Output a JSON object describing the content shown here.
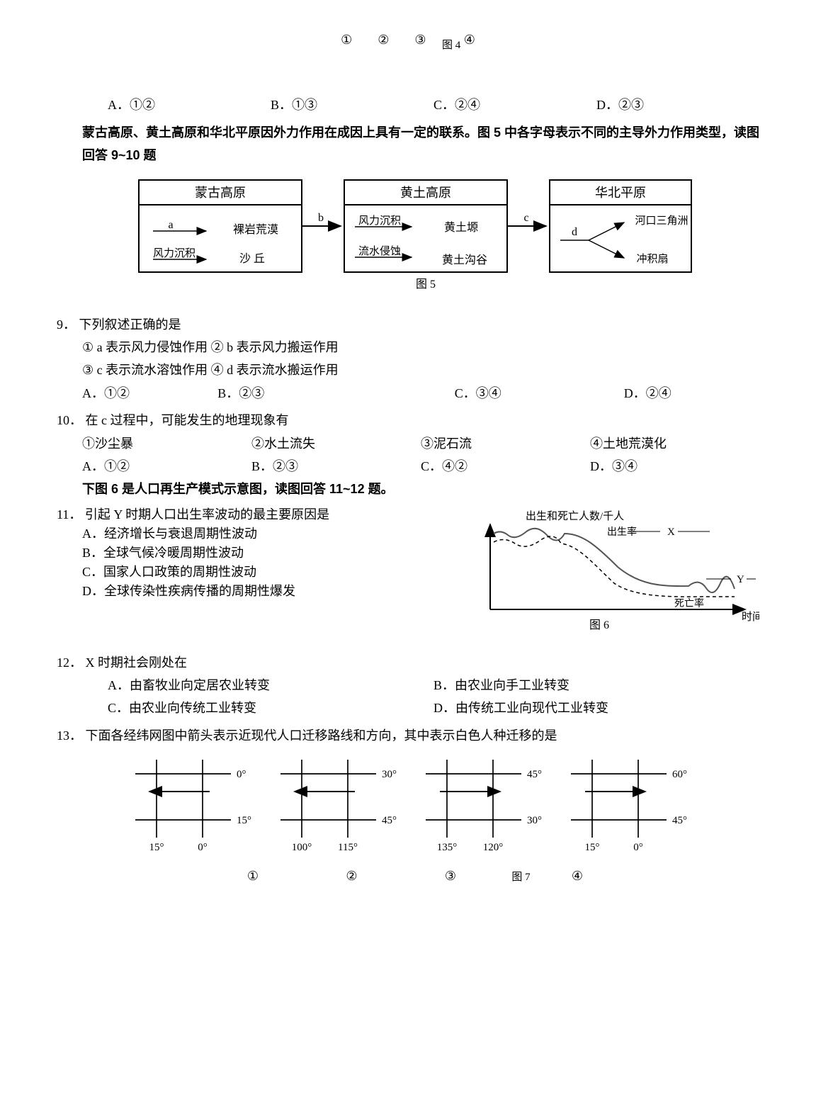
{
  "top": {
    "circled": [
      "①",
      "②",
      "③",
      "④"
    ],
    "fig4": "图 4",
    "opts": {
      "A": "A．①②",
      "B": "B．①③",
      "C": "C．②④",
      "D": "D．②③"
    }
  },
  "intro5": "蒙古高原、黄土高原和华北平原因外力作用在成因上具有一定的联系。图 5 中各字母表示不同的主导外力作用类型，读图回答 9~10 题",
  "box1_title": "蒙古高原",
  "box1_a": "a",
  "box1_a_t": "裸岩荒漠",
  "box1_b1": "风力沉积",
  "box1_b1_t": "沙  丘",
  "b": "b",
  "box2_title": "黄土高原",
  "box2_a": "风力沉积",
  "box2_a_t": "黄土塬",
  "box2_b": "流水侵蚀",
  "box2_b_t": "黄土沟谷",
  "c": "c",
  "box3_title": "华北平原",
  "d": "d",
  "box3_t1": "河口三角洲",
  "box3_t2": "冲积扇",
  "fig5": "图 5",
  "q9": {
    "num": "9．",
    "stem": "下列叙述正确的是",
    "l1": "① a 表示风力侵蚀作用    ② b 表示风力搬运作用",
    "l2": "③ c 表示流水溶蚀作用    ④ d 表示流水搬运作用",
    "opts": {
      "A": "A．①②",
      "B": "B．②③",
      "C": "C．③④",
      "D": "D．②④"
    }
  },
  "q10": {
    "num": "10．",
    "stem": "在 c 过程中，可能发生的地理现象有",
    "l1": {
      "a": "①沙尘暴",
      "b": "②水土流失",
      "c": "③泥石流",
      "d": "④土地荒漠化"
    },
    "opts": {
      "A": "A．①②",
      "B": "B．②③",
      "C": "C．④②",
      "D": "D．③④"
    }
  },
  "intro6": "下图 6 是人口再生产模式示意图，读图回答 11~12 题。",
  "q11": {
    "num": "11．",
    "stem": "引起 Y 时期人口出生率波动的最主要原因是",
    "A": "A．经济增长与衰退周期性波动",
    "B": "B．全球气候冷暖周期性波动",
    "C": "C．国家人口政策的周期性波动",
    "D": "D．全球传染性疾病传播的周期性爆发"
  },
  "fig6_ytitle": "出生和死亡人数/千人",
  "fig6_br": "出生率",
  "fig6_dr": "死亡率",
  "fig6_x": "X",
  "fig6_y": "Y",
  "fig6_time": "时间",
  "fig6_label": "图 6",
  "q12": {
    "num": "12．",
    "stem": "X 时期社会刚处在",
    "A": "A．由畜牧业向定居农业转变",
    "B": "B．由农业向手工业转变",
    "C": "C．由农业向传统工业转变",
    "D": "D．由传统工业向现代工业转变"
  },
  "q13": {
    "num": "13．",
    "stem": "下面各经纬网图中箭头表示近现代人口迁移路线和方向，其中表示白色人种迁移的是"
  },
  "grids": [
    {
      "topLat": "0°",
      "botLat": "15°",
      "leftLon": "15°",
      "rightLon": "0°",
      "arrow": "left"
    },
    {
      "topLat": "30°",
      "botLat": "45°",
      "leftLon": "100°",
      "rightLon": "115°",
      "arrow": "left"
    },
    {
      "topLat": "45°",
      "botLat": "30°",
      "leftLon": "135°",
      "rightLon": "120°",
      "arrow": "right"
    },
    {
      "topLat": "60°",
      "botLat": "45°",
      "leftLon": "15°",
      "rightLon": "0°",
      "arrow": "right"
    }
  ],
  "grid_nums": [
    "①",
    "②",
    "③",
    "④"
  ],
  "fig7": "图 7"
}
